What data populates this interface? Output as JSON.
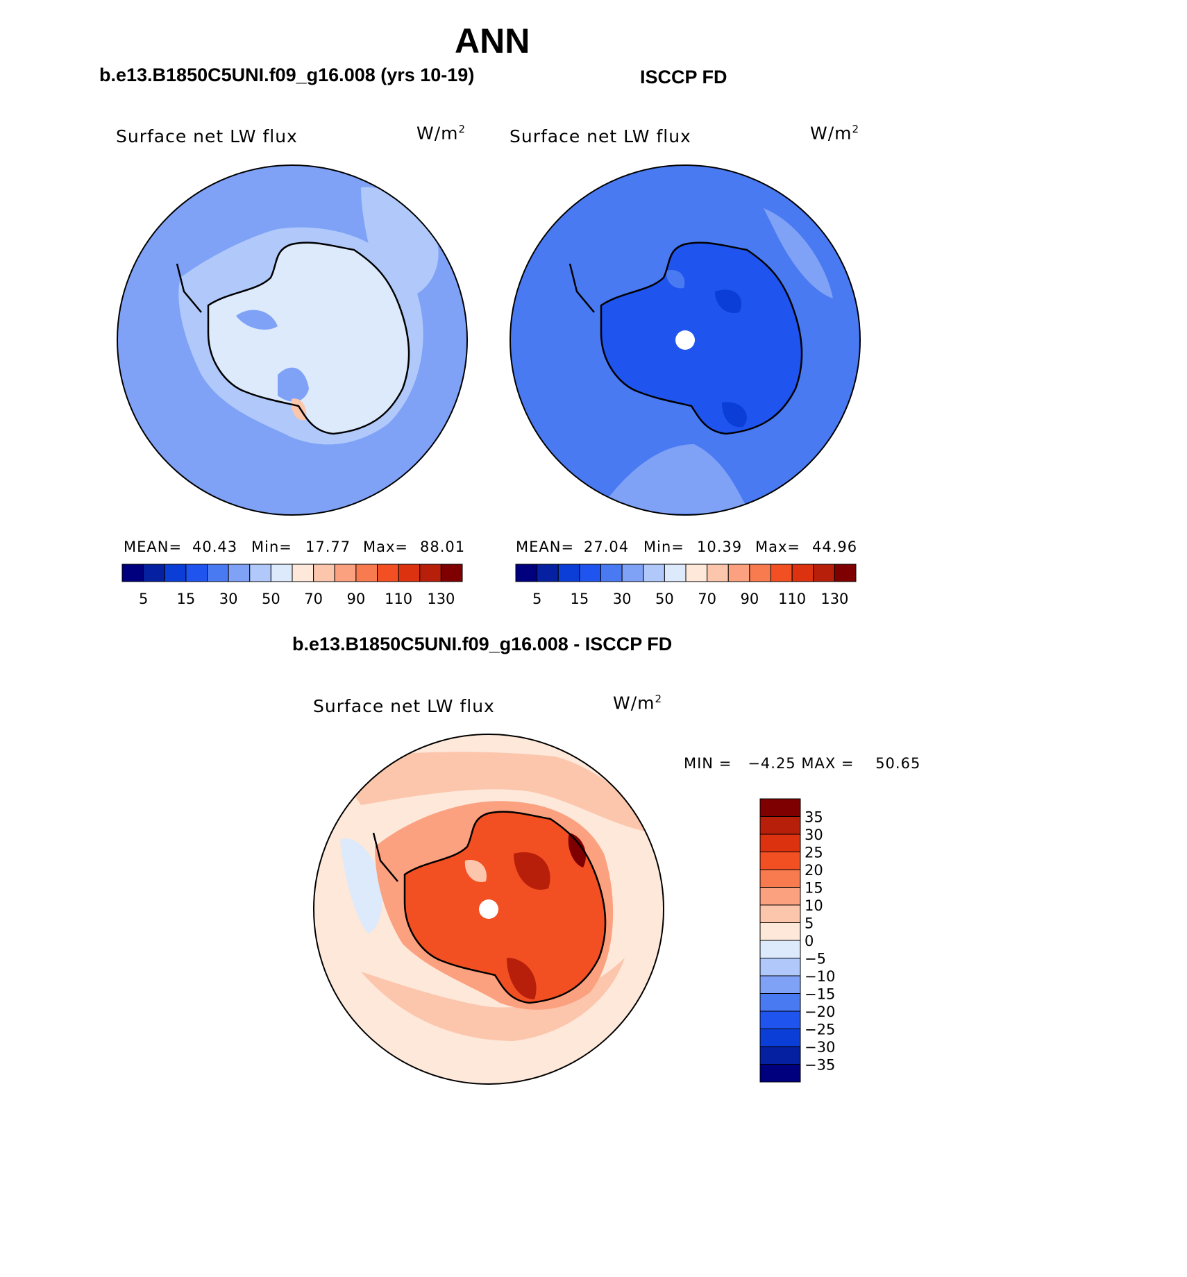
{
  "figure": {
    "title": "ANN",
    "panel_left_title": "b.e13.B1850C5UNI.f09_g16.008 (yrs 10-19)",
    "panel_right_title": "ISCCP FD",
    "panel_diff_title": "b.e13.B1850C5UNI.f09_g16.008 - ISCCP FD"
  },
  "panels": {
    "left": {
      "variable": "Surface net LW flux",
      "units": "W/m",
      "units_exp": "2",
      "stats": {
        "mean_label": "MEAN=",
        "mean": "40.43",
        "min_label": "Min=",
        "min": "17.77",
        "max_label": "Max=",
        "max": "88.01"
      }
    },
    "right": {
      "variable": "Surface net LW flux",
      "units": "W/m",
      "units_exp": "2",
      "stats": {
        "mean_label": "MEAN=",
        "mean": "27.04",
        "min_label": "Min=",
        "min": "10.39",
        "max_label": "Max=",
        "max": "44.96"
      }
    },
    "diff": {
      "variable": "Surface net LW flux",
      "units": "W/m",
      "units_exp": "2",
      "minmax": "MIN =   −4.25 MAX =    50.65"
    }
  },
  "colorbar_abs": {
    "labels": [
      "5",
      "15",
      "30",
      "50",
      "70",
      "90",
      "110",
      "130"
    ],
    "colors": [
      "#00007F",
      "#0520A0",
      "#0A3ED6",
      "#1F54EE",
      "#4A7AF2",
      "#7FA2F7",
      "#B0C9FA",
      "#DCEAFC",
      "#FDE8DA",
      "#FCC6AC",
      "#FBA17F",
      "#F87A4F",
      "#F24F22",
      "#DD3210",
      "#B81F0A",
      "#7F0000"
    ]
  },
  "colorbar_diff": {
    "labels": [
      "35",
      "30",
      "25",
      "20",
      "15",
      "10",
      "5",
      "0",
      "−5",
      "−10",
      "−15",
      "−20",
      "−25",
      "−30",
      "−35"
    ],
    "colors": [
      "#7F0000",
      "#B81F0A",
      "#DD3210",
      "#F24F22",
      "#F87A4F",
      "#FBA17F",
      "#FCC6AC",
      "#FDE8DA",
      "#DCEAFC",
      "#B0C9FA",
      "#7FA2F7",
      "#4A7AF2",
      "#1F54EE",
      "#0A3ED6",
      "#0520A0",
      "#00007F"
    ]
  },
  "map_colors": {
    "left_ocean": "#7FA2F7",
    "left_land": "#DCEAFC",
    "right_ocean": "#4A7AF2",
    "right_land": "#1F54EE",
    "diff_ocean": "#FDE8DA",
    "diff_land": "#F24F22"
  }
}
